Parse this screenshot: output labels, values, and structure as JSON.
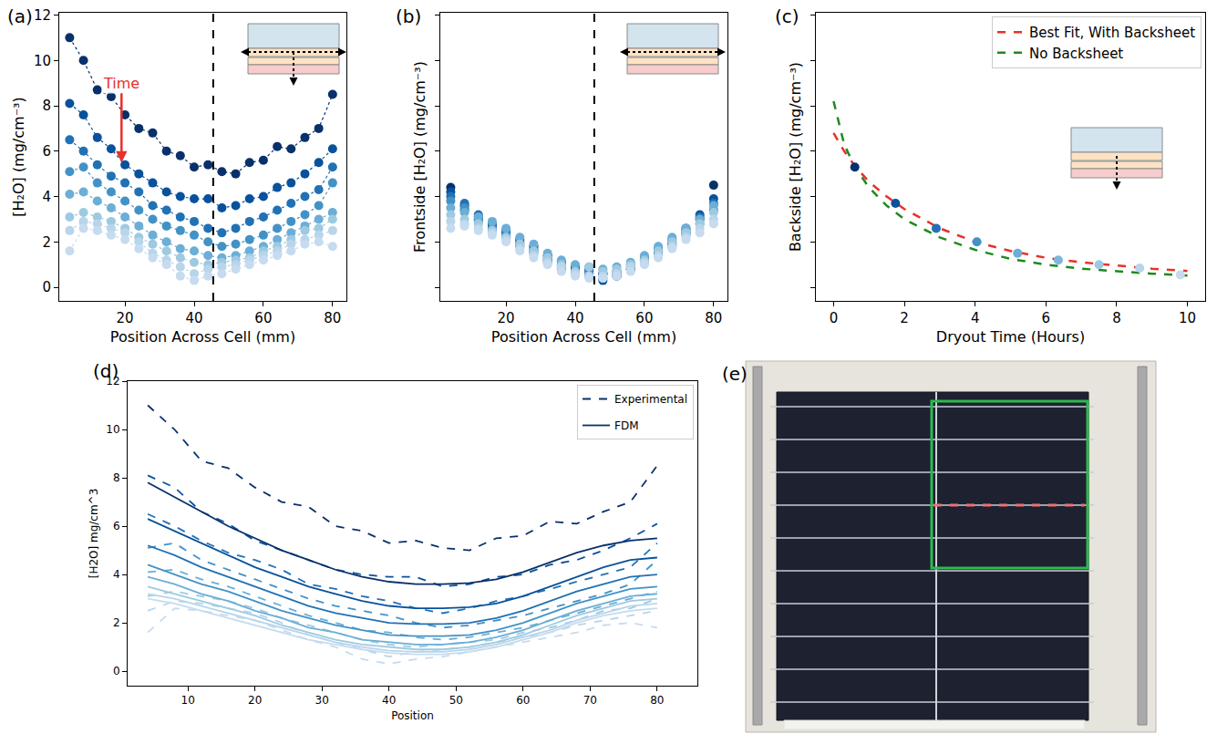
{
  "chart_data": [
    {
      "label": "(a)",
      "type": "scatter",
      "x_label": "Position Across Cell (mm)",
      "y_label": "[H₂O] (mg/cm⁻³)",
      "x": [
        4,
        8,
        12,
        16,
        20,
        24,
        28,
        32,
        36,
        40,
        44,
        48,
        52,
        56,
        60,
        64,
        68,
        72,
        76,
        80
      ],
      "series": [
        {
          "color": "#08306b",
          "values": [
            11.0,
            10.0,
            8.7,
            8.4,
            7.6,
            7.0,
            6.8,
            6.0,
            5.8,
            5.3,
            5.4,
            5.1,
            5.0,
            5.5,
            5.6,
            6.2,
            6.1,
            6.6,
            7.0,
            8.5
          ]
        },
        {
          "color": "#08519c",
          "values": [
            8.1,
            7.6,
            6.6,
            6.1,
            5.4,
            5.0,
            4.6,
            4.2,
            4.0,
            3.9,
            3.9,
            3.5,
            3.6,
            3.9,
            4.0,
            4.4,
            4.6,
            5.0,
            5.5,
            6.1
          ]
        },
        {
          "color": "#2171b5",
          "values": [
            6.5,
            6.0,
            5.4,
            4.9,
            4.6,
            4.2,
            3.6,
            3.4,
            3.1,
            2.9,
            2.6,
            2.4,
            2.6,
            2.9,
            3.1,
            3.4,
            3.7,
            4.0,
            4.3,
            5.3
          ]
        },
        {
          "color": "#4292c6",
          "values": [
            5.1,
            5.3,
            4.6,
            4.2,
            3.8,
            3.4,
            3.0,
            2.7,
            2.5,
            2.3,
            2.0,
            1.8,
            1.9,
            2.1,
            2.3,
            2.6,
            2.9,
            3.2,
            3.6,
            4.6
          ]
        },
        {
          "color": "#6baed6",
          "values": [
            4.1,
            4.2,
            3.8,
            3.5,
            3.1,
            2.7,
            2.3,
            2.0,
            1.7,
            1.6,
            1.4,
            1.3,
            1.4,
            1.6,
            1.8,
            2.1,
            2.4,
            2.7,
            3.0,
            3.3
          ]
        },
        {
          "color": "#9ecae1",
          "values": [
            3.1,
            3.3,
            3.1,
            2.9,
            2.6,
            2.2,
            1.9,
            1.6,
            1.3,
            1.1,
            1.0,
            1.1,
            1.2,
            1.3,
            1.6,
            1.8,
            2.1,
            2.5,
            2.6,
            3.0
          ]
        },
        {
          "color": "#b8d5ea",
          "values": [
            2.5,
            2.9,
            2.8,
            2.6,
            2.4,
            2.0,
            1.5,
            1.2,
            0.9,
            0.6,
            0.8,
            0.9,
            1.0,
            1.2,
            1.4,
            1.6,
            1.9,
            2.1,
            2.3,
            2.5
          ]
        },
        {
          "color": "#c6dbef",
          "values": [
            1.6,
            2.6,
            2.5,
            2.3,
            2.1,
            1.7,
            1.3,
            1.0,
            0.5,
            0.3,
            0.5,
            0.6,
            0.8,
            1.0,
            1.2,
            1.4,
            1.6,
            1.9,
            2.0,
            1.8
          ]
        }
      ],
      "marker": "circle",
      "line_style": "dotted",
      "xlim": [
        1,
        84
      ],
      "ylim": [
        -0.6,
        12.1
      ],
      "xticks": [
        20,
        40,
        60,
        80
      ],
      "yticks": [
        0,
        2,
        4,
        6,
        8,
        10,
        12
      ],
      "reference_line_x": 45.5,
      "annotations": [
        {
          "text": "Time",
          "color": "#e8312a",
          "x": 19,
          "y": 5.5,
          "ax": 19,
          "ay": 9.0
        }
      ]
    },
    {
      "label": "(b)",
      "type": "scatter",
      "x_label": "Position Across Cell (mm)",
      "y_label": "Frontside [H₂O] (mg/cm⁻³)",
      "x": [
        4,
        8,
        12,
        16,
        20,
        24,
        28,
        32,
        36,
        40,
        44,
        48,
        52,
        56,
        60,
        64,
        68,
        72,
        76,
        80
      ],
      "series": [
        {
          "color": "#08306b",
          "values": [
            4.4,
            3.6,
            3.1,
            2.7,
            2.4,
            2.1,
            1.8,
            1.4,
            1.1,
            0.9,
            0.7,
            0.6,
            0.5,
            0.8,
            1.1,
            1.5,
            1.9,
            2.4,
            3.0,
            4.5
          ]
        },
        {
          "color": "#08519c",
          "values": [
            4.2,
            3.4,
            3.0,
            2.5,
            2.2,
            1.9,
            1.6,
            1.2,
            0.9,
            0.7,
            0.5,
            0.3,
            0.6,
            0.9,
            1.2,
            1.6,
            2.0,
            2.6,
            3.2,
            3.9
          ]
        },
        {
          "color": "#2171b5",
          "values": [
            4.0,
            3.7,
            3.2,
            2.8,
            2.5,
            2.0,
            1.7,
            1.3,
            1.0,
            0.8,
            0.8,
            0.6,
            0.7,
            1.0,
            1.3,
            1.7,
            2.1,
            2.5,
            3.1,
            3.7
          ]
        },
        {
          "color": "#4292c6",
          "values": [
            3.8,
            3.5,
            2.9,
            2.6,
            2.3,
            1.8,
            1.5,
            1.1,
            0.8,
            0.6,
            0.6,
            0.4,
            0.5,
            0.8,
            1.1,
            1.4,
            1.8,
            2.3,
            2.8,
            3.4
          ]
        },
        {
          "color": "#6baed6",
          "values": [
            3.5,
            3.3,
            3.1,
            2.9,
            2.6,
            2.2,
            1.9,
            1.5,
            1.2,
            1.0,
            0.9,
            0.8,
            0.9,
            1.1,
            1.4,
            1.8,
            2.2,
            2.6,
            3.0,
            3.6
          ]
        },
        {
          "color": "#9ecae1",
          "values": [
            3.2,
            3.0,
            2.8,
            2.5,
            2.2,
            1.9,
            1.6,
            1.3,
            1.0,
            0.7,
            0.9,
            0.7,
            0.8,
            1.0,
            1.2,
            1.6,
            2.0,
            2.4,
            2.8,
            3.3
          ]
        },
        {
          "color": "#b8d5ea",
          "values": [
            2.9,
            2.8,
            2.6,
            2.4,
            2.1,
            1.7,
            1.4,
            1.1,
            0.9,
            0.6,
            0.5,
            0.5,
            0.6,
            0.9,
            1.1,
            1.4,
            1.8,
            2.2,
            2.6,
            3.0
          ]
        },
        {
          "color": "#c6dbef",
          "values": [
            2.6,
            2.7,
            2.5,
            2.3,
            2.0,
            1.6,
            1.3,
            1.0,
            0.7,
            0.5,
            0.4,
            0.4,
            0.5,
            0.7,
            1.0,
            1.3,
            1.7,
            2.1,
            2.4,
            2.8
          ]
        }
      ],
      "marker": "circle",
      "xlim": [
        1,
        84
      ],
      "ylim": [
        -0.6,
        12.1
      ],
      "xticks": [
        20,
        40,
        60,
        80
      ],
      "yticks": [
        0,
        2,
        4,
        6,
        8,
        10,
        12
      ],
      "tick_labels": "x",
      "reference_line_x": 45.5
    },
    {
      "label": "(c)",
      "type": "line",
      "x_label": "Dryout Time (Hours)",
      "y_label": "Backside [H₂O] (mg/cm⁻³)",
      "series": [
        {
          "name": "Best Fit, With Backsheet",
          "type": "line",
          "line_style": "dashed",
          "color": "#e8312a",
          "x": [
            0,
            0.3,
            0.6,
            1,
            1.5,
            2,
            3,
            4,
            5,
            6,
            7,
            8,
            9,
            10
          ],
          "values": [
            6.8,
            6.0,
            5.35,
            4.65,
            4.0,
            3.45,
            2.6,
            2.0,
            1.6,
            1.3,
            1.1,
            0.95,
            0.82,
            0.72
          ]
        },
        {
          "name": "No Backsheet",
          "type": "line",
          "line_style": "dashed",
          "color": "#1e8a1e",
          "x": [
            0,
            0.3,
            0.6,
            1,
            1.5,
            2,
            3,
            4,
            5,
            6,
            7,
            8,
            9,
            10
          ],
          "values": [
            8.2,
            6.3,
            5.3,
            4.4,
            3.6,
            3.0,
            2.2,
            1.65,
            1.25,
            1.0,
            0.82,
            0.7,
            0.6,
            0.52
          ]
        },
        {
          "type": "scatter",
          "marker": "circle",
          "colors": [
            "#08306b",
            "#08519c",
            "#2171b5",
            "#4292c6",
            "#6baed6",
            "#7fb5dc",
            "#9ecae1",
            "#b8d5ea",
            "#c6dbef"
          ],
          "x": [
            0.6,
            1.75,
            2.9,
            4.05,
            5.2,
            6.35,
            7.5,
            8.65,
            9.8
          ],
          "values": [
            5.3,
            3.7,
            2.6,
            2.0,
            1.5,
            1.2,
            1.0,
            0.85,
            0.55
          ]
        }
      ],
      "xlim": [
        -0.5,
        10.5
      ],
      "ylim": [
        -0.6,
        12.1
      ],
      "xticks": [
        0,
        2,
        4,
        6,
        8,
        10
      ],
      "yticks": [
        0,
        2,
        4,
        6,
        8,
        10,
        12
      ],
      "tick_labels": "x",
      "legend": "upper right"
    },
    {
      "label": "(d)",
      "type": "line",
      "x_label": "Position",
      "y_label": "[H2O] mg/cm^3",
      "x": [
        4,
        8,
        12,
        16,
        20,
        24,
        28,
        32,
        36,
        40,
        44,
        48,
        52,
        56,
        60,
        64,
        68,
        72,
        76,
        80
      ],
      "series": [
        {
          "name": "Experimental",
          "line_style": "dashed",
          "colors": [
            "#08306b",
            "#08519c",
            "#2171b5",
            "#4292c6",
            "#6baed6",
            "#9ecae1",
            "#b8d5ea",
            "#c6dbef"
          ],
          "values": [
            [
              11.0,
              10.0,
              8.7,
              8.4,
              7.6,
              7.0,
              6.8,
              6.0,
              5.8,
              5.3,
              5.4,
              5.1,
              5.0,
              5.5,
              5.6,
              6.2,
              6.1,
              6.6,
              7.0,
              8.5
            ],
            [
              8.1,
              7.6,
              6.6,
              6.1,
              5.4,
              5.0,
              4.6,
              4.2,
              4.0,
              3.9,
              3.9,
              3.5,
              3.6,
              3.9,
              4.0,
              4.4,
              4.6,
              5.0,
              5.5,
              6.1
            ],
            [
              6.5,
              6.0,
              5.4,
              4.9,
              4.6,
              4.2,
              3.6,
              3.4,
              3.1,
              2.9,
              2.6,
              2.4,
              2.6,
              2.9,
              3.1,
              3.4,
              3.7,
              4.0,
              4.3,
              5.3
            ],
            [
              5.1,
              5.3,
              4.6,
              4.2,
              3.8,
              3.4,
              3.0,
              2.7,
              2.5,
              2.3,
              2.0,
              1.8,
              1.9,
              2.1,
              2.3,
              2.6,
              2.9,
              3.2,
              3.6,
              4.6
            ],
            [
              4.1,
              4.2,
              3.8,
              3.5,
              3.1,
              2.7,
              2.3,
              2.0,
              1.7,
              1.6,
              1.4,
              1.3,
              1.4,
              1.6,
              1.8,
              2.1,
              2.4,
              2.7,
              3.0,
              3.3
            ],
            [
              3.1,
              3.3,
              3.1,
              2.9,
              2.6,
              2.2,
              1.9,
              1.6,
              1.3,
              1.1,
              1.0,
              1.1,
              1.2,
              1.3,
              1.6,
              1.8,
              2.1,
              2.5,
              2.6,
              3.0
            ],
            [
              2.5,
              2.9,
              2.8,
              2.6,
              2.4,
              2.0,
              1.5,
              1.2,
              0.9,
              0.6,
              0.8,
              0.9,
              1.0,
              1.2,
              1.4,
              1.6,
              1.9,
              2.1,
              2.3,
              2.5
            ],
            [
              1.6,
              2.6,
              2.5,
              2.3,
              2.1,
              1.7,
              1.3,
              1.0,
              0.5,
              0.3,
              0.5,
              0.6,
              0.8,
              1.0,
              1.2,
              1.4,
              1.6,
              1.9,
              2.0,
              1.8
            ]
          ]
        },
        {
          "name": "FDM",
          "line_style": "solid",
          "colors": [
            "#08306b",
            "#08519c",
            "#2171b5",
            "#4292c6",
            "#6baed6",
            "#9ecae1",
            "#b8d5ea",
            "#c6dbef"
          ],
          "values": [
            [
              7.8,
              7.2,
              6.6,
              6.0,
              5.5,
              5.0,
              4.6,
              4.2,
              3.9,
              3.7,
              3.6,
              3.6,
              3.65,
              3.8,
              4.1,
              4.5,
              4.9,
              5.2,
              5.4,
              5.5
            ],
            [
              6.3,
              5.8,
              5.3,
              4.8,
              4.3,
              3.9,
              3.5,
              3.2,
              2.9,
              2.7,
              2.6,
              2.6,
              2.65,
              2.8,
              3.1,
              3.5,
              3.9,
              4.3,
              4.6,
              4.7
            ],
            [
              5.2,
              4.8,
              4.3,
              3.9,
              3.5,
              3.1,
              2.7,
              2.4,
              2.2,
              2.0,
              1.95,
              1.95,
              2.0,
              2.2,
              2.5,
              2.9,
              3.3,
              3.6,
              3.9,
              4.0
            ],
            [
              4.4,
              4.0,
              3.6,
              3.3,
              2.9,
              2.5,
              2.2,
              1.9,
              1.7,
              1.5,
              1.45,
              1.45,
              1.5,
              1.7,
              2.0,
              2.4,
              2.8,
              3.1,
              3.4,
              3.5
            ],
            [
              3.9,
              3.6,
              3.2,
              2.9,
              2.5,
              2.2,
              1.8,
              1.6,
              1.3,
              1.2,
              1.1,
              1.1,
              1.2,
              1.4,
              1.7,
              2.1,
              2.5,
              2.8,
              3.1,
              3.2
            ],
            [
              3.5,
              3.2,
              2.9,
              2.6,
              2.3,
              1.9,
              1.6,
              1.3,
              1.1,
              1.0,
              0.9,
              0.9,
              1.0,
              1.2,
              1.5,
              1.9,
              2.3,
              2.6,
              2.9,
              3.0
            ],
            [
              3.2,
              3.0,
              2.7,
              2.4,
              2.1,
              1.8,
              1.5,
              1.2,
              1.0,
              0.85,
              0.8,
              0.8,
              0.9,
              1.1,
              1.4,
              1.7,
              2.1,
              2.4,
              2.7,
              2.8
            ],
            [
              3.0,
              2.8,
              2.5,
              2.2,
              1.9,
              1.6,
              1.3,
              1.1,
              0.9,
              0.75,
              0.7,
              0.7,
              0.8,
              1.0,
              1.3,
              1.6,
              2.0,
              2.3,
              2.5,
              2.6
            ]
          ]
        }
      ],
      "xlim": [
        1,
        86
      ],
      "ylim": [
        -0.6,
        12
      ],
      "xticks": [
        10,
        20,
        30,
        40,
        50,
        60,
        70,
        80
      ],
      "yticks": [
        0,
        2,
        4,
        6,
        8,
        10,
        12
      ],
      "legend": "upper right"
    }
  ],
  "photo": {
    "label": "(e)"
  }
}
